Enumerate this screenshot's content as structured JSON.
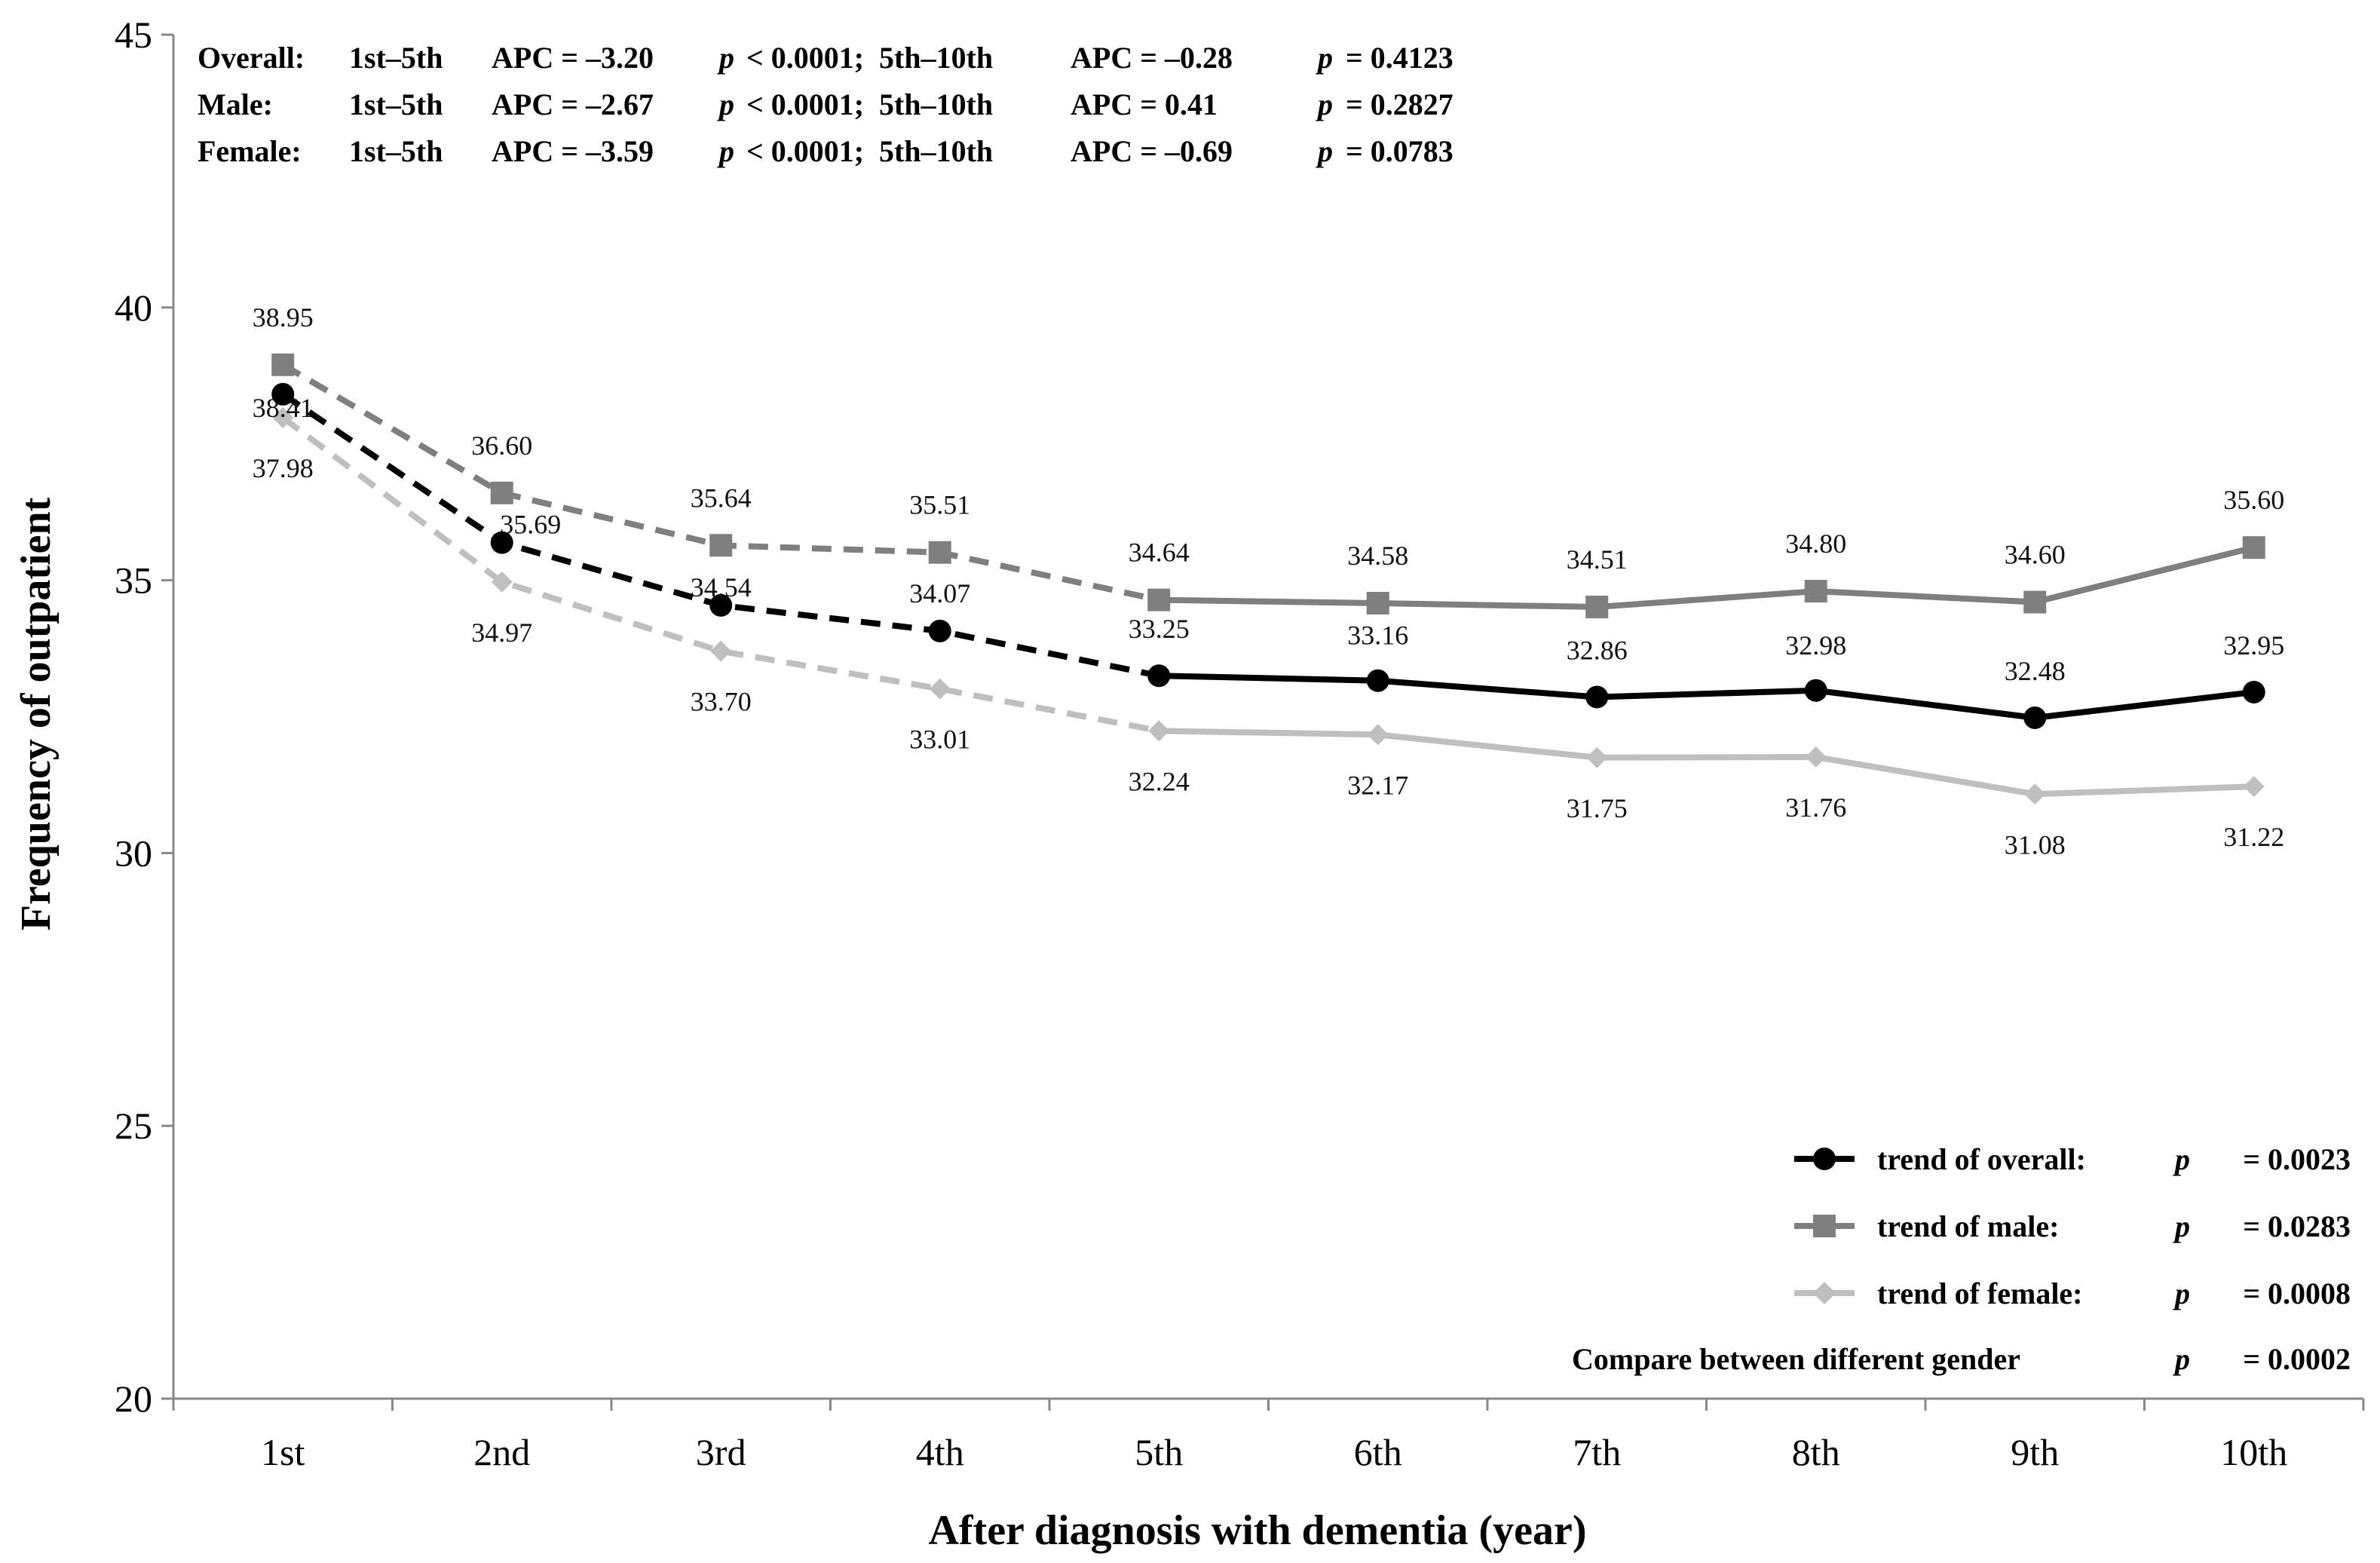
{
  "chart_data": {
    "type": "line",
    "xlabel": "After diagnosis with dementia (year)",
    "ylabel": "Frequency of outpatient",
    "ylim": [
      20,
      45
    ],
    "yticks": [
      "20",
      "25",
      "30",
      "35",
      "40",
      "45"
    ],
    "categories": [
      "1st",
      "2nd",
      "3rd",
      "4th",
      "5th",
      "6th",
      "7th",
      "8th",
      "9th",
      "10th"
    ],
    "series": [
      {
        "name": "overall",
        "color": "#000000",
        "marker": "circle",
        "values": [
          38.41,
          35.69,
          34.54,
          34.07,
          33.25,
          33.16,
          32.86,
          32.98,
          32.48,
          32.95
        ],
        "labels": [
          "38.41",
          "35.69",
          "34.54",
          "34.07",
          "33.25",
          "33.16",
          "32.86",
          "32.98",
          "32.48",
          "32.95"
        ]
      },
      {
        "name": "male",
        "color": "#7f7f7f",
        "marker": "square",
        "values": [
          38.95,
          36.6,
          35.64,
          35.51,
          34.64,
          34.58,
          34.51,
          34.8,
          34.6,
          35.6
        ],
        "labels": [
          "38.95",
          "36.60",
          "35.64",
          "35.51",
          "34.64",
          "34.58",
          "34.51",
          "34.80",
          "34.60",
          "35.60"
        ]
      },
      {
        "name": "female",
        "color": "#bfbfbf",
        "marker": "diamond",
        "values": [
          37.98,
          34.97,
          33.7,
          33.01,
          32.24,
          32.17,
          31.75,
          31.76,
          31.08,
          31.22
        ],
        "labels": [
          "37.98",
          "34.97",
          "33.70",
          "33.01",
          "32.24",
          "32.17",
          "31.75",
          "31.76",
          "31.08",
          "31.22"
        ]
      }
    ],
    "annotations": [
      {
        "group": "Overall:",
        "seg1": "1st–5th",
        "apc1": "APC = –3.20",
        "p1": "< 0.0001;",
        "seg2": "5th–10th",
        "apc2": "APC = –0.28",
        "p2": "= 0.4123"
      },
      {
        "group": "Male:",
        "seg1": "1st–5th",
        "apc1": "APC = –2.67",
        "p1": "< 0.0001;",
        "seg2": "5th–10th",
        "apc2": "APC = 0.41",
        "p2": "= 0.2827"
      },
      {
        "group": "Female:",
        "seg1": "1st–5th",
        "apc1": "APC = –3.59",
        "p1": "< 0.0001;",
        "seg2": "5th–10th",
        "apc2": "APC = –0.69",
        "p2": "= 0.0783"
      }
    ],
    "p_symbol": "p",
    "legend": {
      "position": "bottom-right",
      "items": [
        {
          "series": "overall",
          "label": "trend of overall:",
          "p": "= 0.0023"
        },
        {
          "series": "male",
          "label": "trend of male:",
          "p": "= 0.0283"
        },
        {
          "series": "female",
          "label": "trend of female:",
          "p": "= 0.0008"
        }
      ],
      "compare": {
        "label": "Compare between different gender",
        "p": "= 0.0002"
      }
    },
    "dashed_through_category": "5th"
  }
}
